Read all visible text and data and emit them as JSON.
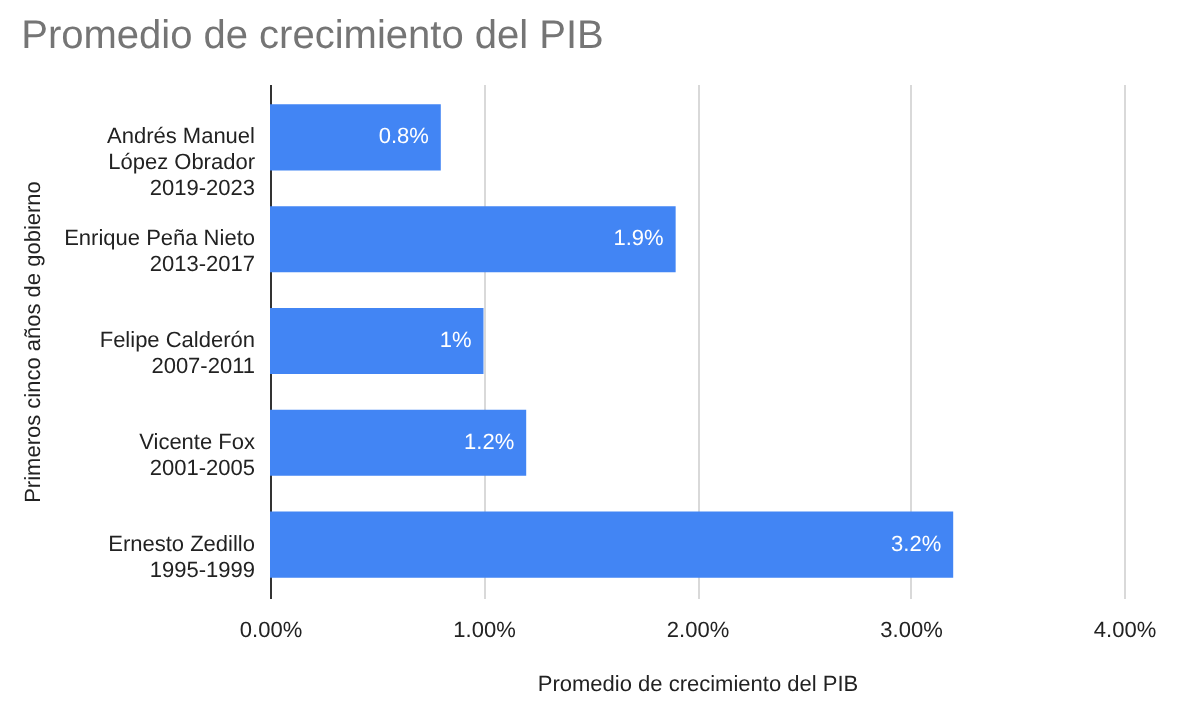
{
  "chart_data": {
    "type": "bar",
    "orientation": "horizontal",
    "title": "Promedio de crecimiento del PIB",
    "xlabel": "Promedio de crecimiento del PIB",
    "ylabel": "Primeros cinco años de gobierno",
    "categories": [
      "Andrés Manuel\nLópez Obrador\n2019-2023",
      "Enrique Peña Nieto\n2013-2017",
      "Felipe Calderón\n2007-2011",
      "Vicente Fox\n2001-2005",
      "Ernesto Zedillo\n1995-1999"
    ],
    "values": [
      0.8,
      1.9,
      1,
      1.2,
      3.2
    ],
    "value_labels": [
      "0.8%",
      "1.9%",
      "1%",
      "1.2%",
      "3.2%"
    ],
    "color": "#4285f4",
    "xlim": [
      0,
      4
    ],
    "xticks": [
      {
        "value": 0,
        "label": "0.00%"
      },
      {
        "value": 1,
        "label": "1.00%"
      },
      {
        "value": 2,
        "label": "2.00%"
      },
      {
        "value": 3,
        "label": "3.00%"
      },
      {
        "value": 4,
        "label": "4.00%"
      }
    ],
    "grid": "x"
  }
}
